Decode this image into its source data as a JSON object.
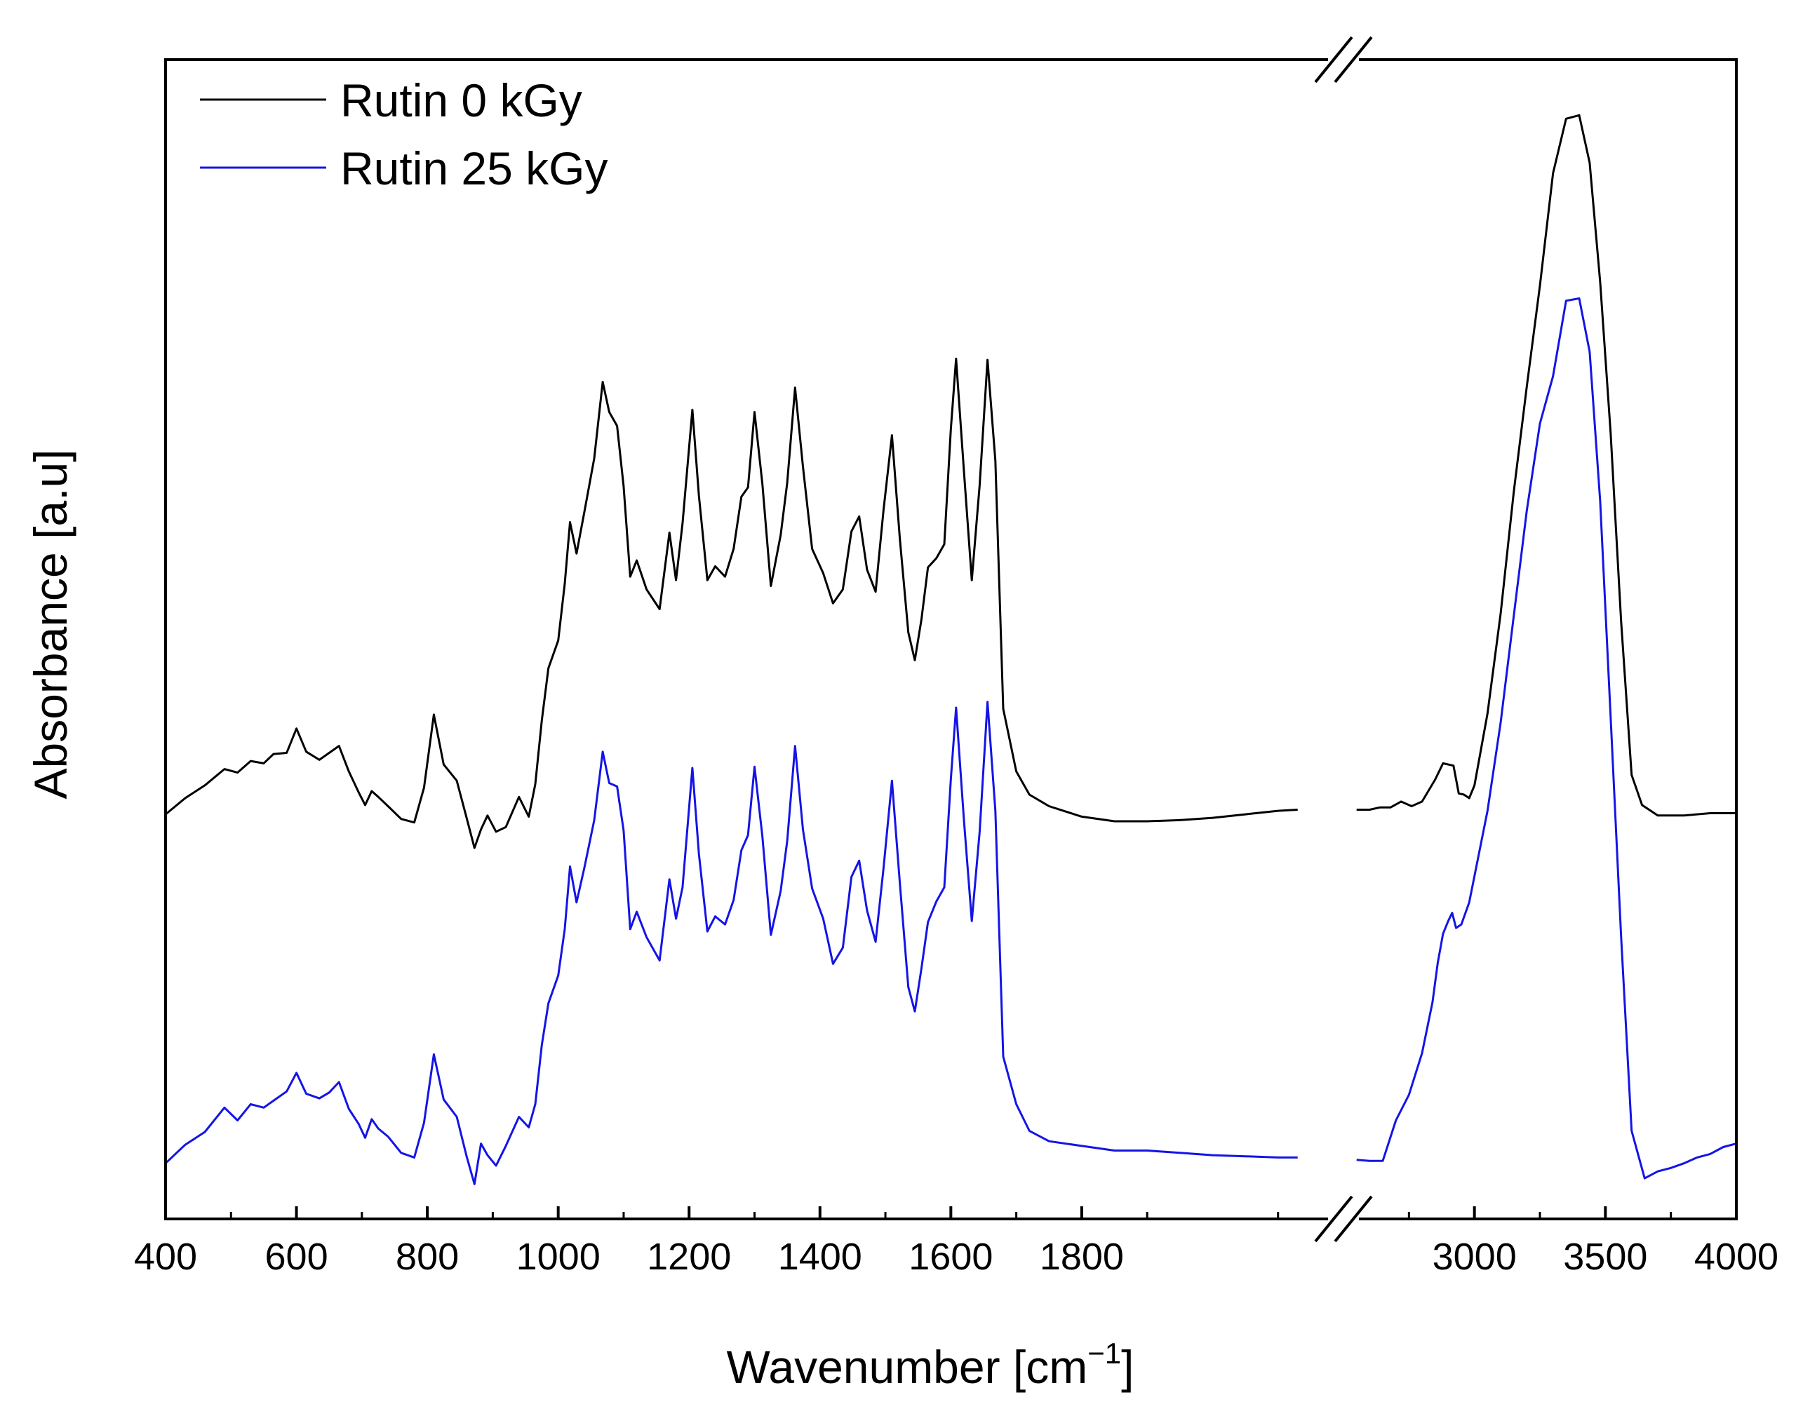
{
  "chart_data": {
    "type": "line",
    "xlabel": "Wavenumber [cm",
    "xlabel_sup": "−1",
    "xlabel_close": "]",
    "ylabel": "Absorbance [a.u]",
    "x_axis_break": {
      "left_range": [
        400,
        2200
      ],
      "right_range": [
        2500,
        4000
      ]
    },
    "x_ticks_left": [
      400,
      600,
      800,
      1000,
      1200,
      1400,
      1600,
      1800
    ],
    "x_ticks_right": [
      3000,
      3500,
      4000
    ],
    "ylim": [
      0,
      100
    ],
    "y_ticks": [],
    "legend_position": "top-left",
    "grid": false,
    "series": [
      {
        "name": "Rutin 0 kGy",
        "color": "#000000",
        "points": [
          [
            400,
            34.9
          ],
          [
            430,
            36.3
          ],
          [
            460,
            37.4
          ],
          [
            490,
            38.8
          ],
          [
            510,
            38.5
          ],
          [
            530,
            39.5
          ],
          [
            550,
            39.3
          ],
          [
            565,
            40.1
          ],
          [
            585,
            40.2
          ],
          [
            600,
            42.3
          ],
          [
            615,
            40.3
          ],
          [
            635,
            39.6
          ],
          [
            650,
            40.2
          ],
          [
            665,
            40.8
          ],
          [
            680,
            38.6
          ],
          [
            695,
            36.8
          ],
          [
            705,
            35.7
          ],
          [
            715,
            36.9
          ],
          [
            725,
            36.4
          ],
          [
            740,
            35.6
          ],
          [
            760,
            34.5
          ],
          [
            780,
            34.2
          ],
          [
            795,
            37.2
          ],
          [
            810,
            43.5
          ],
          [
            825,
            39.2
          ],
          [
            845,
            37.8
          ],
          [
            860,
            34.6
          ],
          [
            872,
            32.0
          ],
          [
            882,
            33.6
          ],
          [
            892,
            34.8
          ],
          [
            905,
            33.4
          ],
          [
            920,
            33.8
          ],
          [
            940,
            36.4
          ],
          [
            955,
            34.7
          ],
          [
            965,
            37.5
          ],
          [
            975,
            43.0
          ],
          [
            985,
            47.5
          ],
          [
            1000,
            49.9
          ],
          [
            1010,
            54.8
          ],
          [
            1018,
            60.1
          ],
          [
            1028,
            57.4
          ],
          [
            1040,
            61.0
          ],
          [
            1055,
            65.6
          ],
          [
            1068,
            72.2
          ],
          [
            1078,
            69.6
          ],
          [
            1090,
            68.4
          ],
          [
            1100,
            63.2
          ],
          [
            1110,
            55.4
          ],
          [
            1120,
            56.8
          ],
          [
            1135,
            54.3
          ],
          [
            1155,
            52.6
          ],
          [
            1170,
            59.2
          ],
          [
            1180,
            55.1
          ],
          [
            1190,
            60.0
          ],
          [
            1205,
            69.8
          ],
          [
            1215,
            62.4
          ],
          [
            1228,
            55.1
          ],
          [
            1240,
            56.3
          ],
          [
            1255,
            55.4
          ],
          [
            1268,
            57.8
          ],
          [
            1280,
            62.3
          ],
          [
            1290,
            63.1
          ],
          [
            1300,
            69.6
          ],
          [
            1312,
            63.4
          ],
          [
            1325,
            54.6
          ],
          [
            1340,
            59.0
          ],
          [
            1350,
            63.5
          ],
          [
            1362,
            71.7
          ],
          [
            1374,
            64.9
          ],
          [
            1388,
            57.8
          ],
          [
            1405,
            55.7
          ],
          [
            1420,
            53.1
          ],
          [
            1435,
            54.3
          ],
          [
            1448,
            59.3
          ],
          [
            1460,
            60.6
          ],
          [
            1472,
            56.0
          ],
          [
            1485,
            54.1
          ],
          [
            1497,
            61.1
          ],
          [
            1510,
            67.6
          ],
          [
            1522,
            58.7
          ],
          [
            1535,
            50.6
          ],
          [
            1545,
            48.2
          ],
          [
            1555,
            51.7
          ],
          [
            1565,
            56.2
          ],
          [
            1578,
            57.0
          ],
          [
            1590,
            58.2
          ],
          [
            1600,
            68.1
          ],
          [
            1608,
            74.2
          ],
          [
            1620,
            64.5
          ],
          [
            1632,
            55.1
          ],
          [
            1644,
            63.3
          ],
          [
            1656,
            74.1
          ],
          [
            1668,
            65.4
          ],
          [
            1680,
            44.0
          ],
          [
            1700,
            38.6
          ],
          [
            1720,
            36.6
          ],
          [
            1750,
            35.6
          ],
          [
            1800,
            34.7
          ],
          [
            1850,
            34.3
          ],
          [
            1900,
            34.3
          ],
          [
            1950,
            34.4
          ],
          [
            2000,
            34.6
          ],
          [
            2050,
            34.9
          ],
          [
            2100,
            35.2
          ],
          [
            2130,
            35.3
          ],
          null,
          [
            2550,
            35.3
          ],
          [
            2600,
            35.3
          ],
          [
            2640,
            35.5
          ],
          [
            2680,
            35.5
          ],
          [
            2720,
            36.0
          ],
          [
            2760,
            35.6
          ],
          [
            2800,
            36.0
          ],
          [
            2850,
            37.9
          ],
          [
            2880,
            39.3
          ],
          [
            2920,
            39.1
          ],
          [
            2940,
            36.7
          ],
          [
            2960,
            36.6
          ],
          [
            2980,
            36.3
          ],
          [
            3000,
            37.4
          ],
          [
            3050,
            43.6
          ],
          [
            3100,
            52.2
          ],
          [
            3150,
            62.7
          ],
          [
            3200,
            71.8
          ],
          [
            3250,
            80.5
          ],
          [
            3300,
            90.2
          ],
          [
            3350,
            94.9
          ],
          [
            3400,
            95.2
          ],
          [
            3440,
            91.1
          ],
          [
            3480,
            80.8
          ],
          [
            3520,
            67.8
          ],
          [
            3560,
            51.6
          ],
          [
            3600,
            38.3
          ],
          [
            3640,
            35.7
          ],
          [
            3700,
            34.8
          ],
          [
            3800,
            34.8
          ],
          [
            3900,
            35.0
          ],
          [
            4000,
            35.0
          ]
        ]
      },
      {
        "name": "Rutin 25 kGy",
        "color": "#1414e6",
        "points": [
          [
            400,
            4.8
          ],
          [
            430,
            6.4
          ],
          [
            460,
            7.5
          ],
          [
            490,
            9.6
          ],
          [
            510,
            8.5
          ],
          [
            530,
            9.9
          ],
          [
            550,
            9.6
          ],
          [
            565,
            10.2
          ],
          [
            585,
            11.0
          ],
          [
            600,
            12.6
          ],
          [
            615,
            10.8
          ],
          [
            635,
            10.4
          ],
          [
            650,
            10.9
          ],
          [
            665,
            11.8
          ],
          [
            680,
            9.5
          ],
          [
            695,
            8.2
          ],
          [
            705,
            7.0
          ],
          [
            715,
            8.6
          ],
          [
            725,
            7.8
          ],
          [
            740,
            7.1
          ],
          [
            760,
            5.7
          ],
          [
            780,
            5.3
          ],
          [
            795,
            8.3
          ],
          [
            810,
            14.2
          ],
          [
            825,
            10.3
          ],
          [
            845,
            8.8
          ],
          [
            860,
            5.4
          ],
          [
            872,
            3.0
          ],
          [
            882,
            6.5
          ],
          [
            892,
            5.5
          ],
          [
            905,
            4.6
          ],
          [
            920,
            6.3
          ],
          [
            940,
            8.8
          ],
          [
            955,
            7.9
          ],
          [
            965,
            9.9
          ],
          [
            975,
            15.0
          ],
          [
            985,
            18.6
          ],
          [
            1000,
            21.0
          ],
          [
            1010,
            25.0
          ],
          [
            1018,
            30.4
          ],
          [
            1028,
            27.3
          ],
          [
            1040,
            30.3
          ],
          [
            1055,
            34.4
          ],
          [
            1068,
            40.3
          ],
          [
            1078,
            37.6
          ],
          [
            1090,
            37.3
          ],
          [
            1100,
            33.5
          ],
          [
            1110,
            25.0
          ],
          [
            1120,
            26.5
          ],
          [
            1135,
            24.3
          ],
          [
            1155,
            22.3
          ],
          [
            1170,
            29.3
          ],
          [
            1180,
            25.9
          ],
          [
            1190,
            28.6
          ],
          [
            1205,
            38.9
          ],
          [
            1215,
            31.5
          ],
          [
            1228,
            24.8
          ],
          [
            1240,
            26.1
          ],
          [
            1255,
            25.4
          ],
          [
            1268,
            27.5
          ],
          [
            1280,
            31.8
          ],
          [
            1290,
            33.1
          ],
          [
            1300,
            39.0
          ],
          [
            1312,
            33.0
          ],
          [
            1325,
            24.5
          ],
          [
            1340,
            28.3
          ],
          [
            1350,
            32.6
          ],
          [
            1362,
            40.8
          ],
          [
            1374,
            33.6
          ],
          [
            1388,
            28.5
          ],
          [
            1405,
            25.9
          ],
          [
            1420,
            22.0
          ],
          [
            1435,
            23.4
          ],
          [
            1448,
            29.5
          ],
          [
            1460,
            30.9
          ],
          [
            1472,
            26.6
          ],
          [
            1485,
            23.9
          ],
          [
            1497,
            30.2
          ],
          [
            1510,
            37.8
          ],
          [
            1522,
            29.0
          ],
          [
            1535,
            20.0
          ],
          [
            1545,
            17.9
          ],
          [
            1555,
            21.6
          ],
          [
            1565,
            25.6
          ],
          [
            1578,
            27.4
          ],
          [
            1590,
            28.6
          ],
          [
            1600,
            37.9
          ],
          [
            1608,
            44.1
          ],
          [
            1620,
            34.4
          ],
          [
            1632,
            25.7
          ],
          [
            1644,
            33.4
          ],
          [
            1656,
            44.6
          ],
          [
            1668,
            35.2
          ],
          [
            1680,
            14.0
          ],
          [
            1700,
            9.9
          ],
          [
            1720,
            7.6
          ],
          [
            1750,
            6.7
          ],
          [
            1800,
            6.3
          ],
          [
            1850,
            5.9
          ],
          [
            1900,
            5.9
          ],
          [
            1950,
            5.7
          ],
          [
            2000,
            5.5
          ],
          [
            2050,
            5.4
          ],
          [
            2100,
            5.3
          ],
          [
            2130,
            5.3
          ],
          null,
          [
            2550,
            5.1
          ],
          [
            2600,
            5.0
          ],
          [
            2650,
            5.0
          ],
          [
            2700,
            8.5
          ],
          [
            2750,
            10.7
          ],
          [
            2800,
            14.3
          ],
          [
            2840,
            18.7
          ],
          [
            2860,
            22.1
          ],
          [
            2880,
            24.6
          ],
          [
            2900,
            25.7
          ],
          [
            2915,
            26.4
          ],
          [
            2930,
            25.1
          ],
          [
            2950,
            25.4
          ],
          [
            2980,
            27.3
          ],
          [
            3050,
            35.2
          ],
          [
            3100,
            42.8
          ],
          [
            3150,
            52.0
          ],
          [
            3200,
            61.1
          ],
          [
            3250,
            68.6
          ],
          [
            3300,
            72.7
          ],
          [
            3350,
            79.2
          ],
          [
            3400,
            79.4
          ],
          [
            3440,
            74.8
          ],
          [
            3480,
            61.9
          ],
          [
            3520,
            43.3
          ],
          [
            3560,
            24.4
          ],
          [
            3600,
            7.6
          ],
          [
            3650,
            3.5
          ],
          [
            3700,
            4.1
          ],
          [
            3750,
            4.4
          ],
          [
            3800,
            4.8
          ],
          [
            3850,
            5.3
          ],
          [
            3900,
            5.6
          ],
          [
            3950,
            6.2
          ],
          [
            4000,
            6.5
          ]
        ]
      }
    ]
  }
}
